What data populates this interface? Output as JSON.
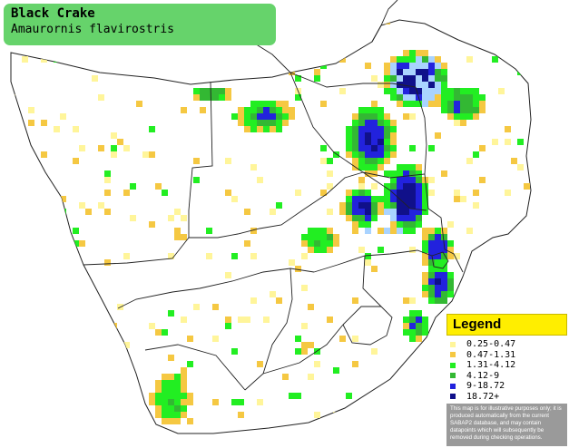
{
  "title": {
    "common_name": "Black Crake",
    "scientific_name": "Amaurornis flavirostris"
  },
  "legend": {
    "heading": "Legend",
    "items": [
      {
        "label": "0.25-0.47",
        "color": "#fff59a"
      },
      {
        "label": "0.47-1.31",
        "color": "#f5c842"
      },
      {
        "label": "1.31-4.12",
        "color": "#22ee22"
      },
      {
        "label": "4.12-9",
        "color": "#33b833"
      },
      {
        "label": "9-18.72",
        "color": "#2222dd"
      },
      {
        "label": "18.72+",
        "color": "#10108a"
      }
    ],
    "note": "This map is for illustrative purposes only; it is produced automatically from the current SABAP2 database, and may contain datapoints which will subsequently be removed during checking operations."
  },
  "colors": {
    "title_bg": "#66d36b",
    "legend_header": "#ffee00",
    "border": "#222222",
    "grid": "#a9d3ff"
  }
}
